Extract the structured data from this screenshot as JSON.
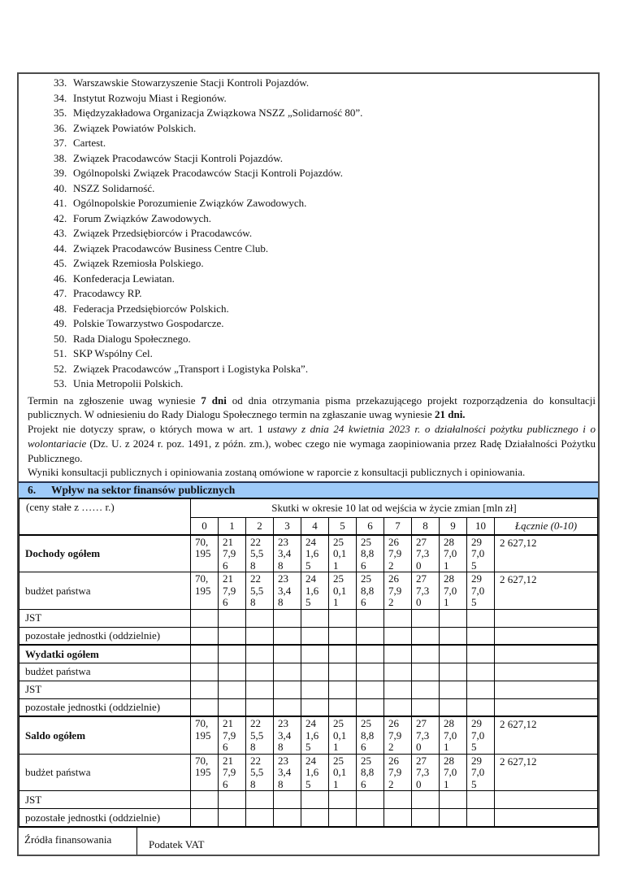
{
  "colors": {
    "section_header_bg": "#9fcbfa",
    "page_border": "#4b4b4b"
  },
  "organization_list": {
    "items": [
      {
        "num": "33.",
        "text": "Warszawskie Stowarzyszenie Stacji Kontroli Pojazdów."
      },
      {
        "num": "34.",
        "text": "Instytut Rozwoju Miast i Regionów."
      },
      {
        "num": "35.",
        "text": "Międzyzakładowa Organizacja Związkowa NSZZ „Solidarność 80”."
      },
      {
        "num": "36.",
        "text": "Związek Powiatów Polskich."
      },
      {
        "num": "37.",
        "text": "Cartest."
      },
      {
        "num": "38.",
        "text": "Związek Pracodawców Stacji Kontroli Pojazdów."
      },
      {
        "num": "39.",
        "text": "Ogólnopolski Związek Pracodawców Stacji Kontroli Pojazdów."
      },
      {
        "num": "40.",
        "text": "NSZZ Solidarność."
      },
      {
        "num": "41.",
        "text": "Ogólnopolskie Porozumienie Związków Zawodowych."
      },
      {
        "num": "42.",
        "text": "Forum Związków Zawodowych."
      },
      {
        "num": "43.",
        "text": "Związek Przedsiębiorców i Pracodawców."
      },
      {
        "num": "44.",
        "text": "Związek Pracodawców Business Centre Club."
      },
      {
        "num": "45.",
        "text": "Związek Rzemiosła Polskiego."
      },
      {
        "num": "46.",
        "text": "Konfederacja Lewiatan."
      },
      {
        "num": "47.",
        "text": "Pracodawcy RP."
      },
      {
        "num": "48.",
        "text": "Federacja Przedsiębiorców Polskich."
      },
      {
        "num": "49.",
        "text": "Polskie Towarzystwo Gospodarcze."
      },
      {
        "num": "50.",
        "text": "Rada Dialogu Społecznego."
      },
      {
        "num": "51.",
        "text": "SKP Wspólny Cel."
      },
      {
        "num": "52.",
        "text": "Związek Pracodawców „Transport i Logistyka Polska”."
      },
      {
        "num": "53.",
        "text": "Unia Metropolii Polskich."
      }
    ]
  },
  "paragraphs": [
    {
      "segments": [
        {
          "text": "Termin na zgłoszenie uwag wyniesie "
        },
        {
          "text": "7 dni",
          "bold": true
        },
        {
          "text": " od dnia otrzymania pisma przekazującego projekt rozporządzenia do konsultacji publicznych. W odniesieniu do Rady Dialogu Społecznego termin na zgłaszanie uwag wyniesie "
        },
        {
          "text": "21 dni.",
          "bold": true
        }
      ]
    },
    {
      "segments": [
        {
          "text": "Projekt nie dotyczy spraw, o których mowa w art. 1 "
        },
        {
          "text": "ustawy z dnia 24 kwietnia 2023 r. o działalności pożytku publicznego i o wolontariacie",
          "italic": true
        },
        {
          "text": " (Dz. U. z 2024 r. poz. 1491, z późn. zm.), wobec czego nie wymaga zaopiniowania przez Radę Działalności Pożytku Publicznego."
        }
      ]
    },
    {
      "segments": [
        {
          "text": "Wyniki konsultacji publicznych i opiniowania zostaną omówione w raporcie z konsultacji publicznych i opiniowania."
        }
      ]
    }
  ],
  "section6": {
    "number": "6.",
    "title": "Wpływ na sektor finansów publicznych"
  },
  "finance_table": {
    "corner_label": "(ceny stałe z …… r.)",
    "impact_header": "Skutki w okresie 10 lat od wejścia w życie zmian [mln zł]",
    "year_columns": [
      "0",
      "1",
      "2",
      "3",
      "4",
      "5",
      "6",
      "7",
      "8",
      "9",
      "10"
    ],
    "total_header": "Łącznie (0-10)",
    "rows": [
      {
        "label": "Dochody ogółem",
        "bold": true,
        "thick": true,
        "tall": true,
        "values": [
          "70,195",
          "217,96",
          "225,58",
          "233,48",
          "241,65",
          "250,11",
          "258,86",
          "267,92",
          "277,30",
          "287,01",
          "297,05"
        ],
        "total": "2 627,12"
      },
      {
        "label": "budżet państwa",
        "tall": true,
        "values": [
          "70,195",
          "217,96",
          "225,58",
          "233,48",
          "241,65",
          "250,11",
          "258,86",
          "267,92",
          "277,30",
          "287,01",
          "297,05"
        ],
        "total": "2 627,12"
      },
      {
        "label": "JST"
      },
      {
        "label": "pozostałe jednostki (oddzielnie)"
      },
      {
        "label": "Wydatki ogółem",
        "bold": true,
        "thick": true
      },
      {
        "label": "budżet państwa"
      },
      {
        "label": "JST"
      },
      {
        "label": "pozostałe jednostki (oddzielnie)"
      },
      {
        "label": "Saldo ogółem",
        "bold": true,
        "thick": true,
        "tall": true,
        "values": [
          "70,195",
          "217,96",
          "225,58",
          "233,48",
          "241,65",
          "250,11",
          "258,86",
          "267,92",
          "277,30",
          "287,01",
          "297,05"
        ],
        "total": "2 627,12"
      },
      {
        "label": "budżet państwa",
        "tall": true,
        "values": [
          "70,195",
          "217,96",
          "225,58",
          "233,48",
          "241,65",
          "250,11",
          "258,86",
          "267,92",
          "277,30",
          "287,01",
          "297,05"
        ],
        "total": "2 627,12"
      },
      {
        "label": "JST"
      },
      {
        "label": "pozostałe jednostki (oddzielnie)"
      }
    ],
    "sources": {
      "label": "Źródła finansowania",
      "value": "Podatek VAT"
    }
  }
}
